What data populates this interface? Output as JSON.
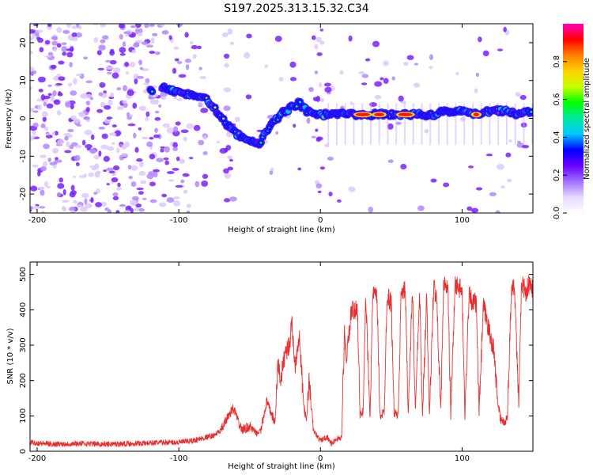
{
  "title": "S197.2025.313.15.32.C34",
  "chart_data": [
    {
      "type": "heatmap",
      "title": "S197.2025.313.15.32.C34",
      "xlabel": "Height of straight line (km)",
      "ylabel": "Frequency (Hz)",
      "xlim": [
        -205,
        150
      ],
      "ylim": [
        -25,
        25
      ],
      "x_ticks": [
        "-200",
        "-100",
        "0",
        "100"
      ],
      "x_tick_values": [
        -200,
        -100,
        0,
        100
      ],
      "y_ticks": [
        "20",
        "10",
        "0",
        "-10",
        "-20"
      ],
      "y_tick_values": [
        20,
        10,
        0,
        -10,
        -20
      ],
      "ridge_x": [
        -120,
        -110,
        -100,
        -90,
        -80,
        -75,
        -70,
        -65,
        -60,
        -55,
        -50,
        -45,
        -42,
        -40,
        -35,
        -30,
        -25,
        -20,
        -15,
        -10,
        -5,
        0,
        10,
        20,
        30,
        40,
        50,
        60,
        70,
        80,
        90,
        100,
        110,
        120,
        130,
        140,
        150
      ],
      "ridge_y": [
        7,
        8,
        7,
        6,
        5,
        3,
        0,
        -2,
        -4,
        -5,
        -6,
        -7,
        -6,
        -4,
        -2,
        0,
        2,
        3,
        4,
        2,
        1,
        1,
        1,
        1,
        1,
        1,
        1,
        1,
        1,
        1,
        2,
        2,
        1,
        2,
        2,
        1,
        2
      ],
      "peak_segments_x": [
        [
          25,
          35
        ],
        [
          38,
          45
        ],
        [
          55,
          65
        ],
        [
          108,
          112
        ]
      ],
      "colorbar": {
        "label": "Normalized spectral amplitude",
        "ticks": [
          "0.0",
          "0.2",
          "0.4",
          "0.6",
          "0.8"
        ],
        "tick_values": [
          0.0,
          0.2,
          0.4,
          0.6,
          0.8
        ],
        "range": [
          0.0,
          1.0
        ],
        "colors": [
          "#ffffff",
          "#e8d8ff",
          "#a070ff",
          "#6a00ff",
          "#0000ff",
          "#00c8ff",
          "#00e8a0",
          "#00ff00",
          "#c8ff00",
          "#ffd000",
          "#ff8000",
          "#ff0000",
          "#ff00c0"
        ]
      }
    },
    {
      "type": "line",
      "xlabel": "Height of straight line (km)",
      "ylabel": "SNR (10 * v/v)",
      "xlim": [
        -205,
        150
      ],
      "ylim": [
        0,
        535
      ],
      "x_ticks": [
        "-200",
        "-100",
        "0",
        "100"
      ],
      "x_tick_values": [
        -200,
        -100,
        0,
        100
      ],
      "y_ticks": [
        "0",
        "100",
        "200",
        "300",
        "400",
        "500"
      ],
      "y_tick_values": [
        0,
        100,
        200,
        300,
        400,
        500
      ],
      "series": [
        {
          "name": "SNR",
          "color": "#e83030",
          "x": [
            -205,
            -190,
            -170,
            -150,
            -130,
            -110,
            -100,
            -90,
            -80,
            -75,
            -70,
            -65,
            -62,
            -60,
            -58,
            -55,
            -50,
            -45,
            -42,
            -40,
            -38,
            -35,
            -32,
            -30,
            -28,
            -25,
            -22,
            -20,
            -18,
            -15,
            -12,
            -10,
            -8,
            -5,
            -2,
            0,
            2,
            5,
            8,
            10,
            12,
            15,
            16,
            17,
            18,
            20,
            22,
            24,
            26,
            28,
            30,
            32,
            35,
            37,
            40,
            42,
            45,
            47,
            50,
            52,
            55,
            57,
            60,
            62,
            65,
            67,
            70,
            72,
            75,
            77,
            80,
            82,
            85,
            87,
            90,
            92,
            95,
            97,
            100,
            102,
            105,
            107,
            110,
            112,
            115,
            117,
            120,
            122,
            125,
            127,
            130,
            132,
            135,
            137,
            140,
            142,
            145,
            147,
            150
          ],
          "y": [
            25,
            20,
            22,
            20,
            22,
            25,
            25,
            30,
            40,
            45,
            60,
            100,
            120,
            110,
            80,
            60,
            70,
            50,
            60,
            100,
            140,
            110,
            80,
            250,
            200,
            280,
            300,
            360,
            240,
            330,
            140,
            80,
            200,
            60,
            40,
            30,
            35,
            40,
            20,
            30,
            35,
            40,
            200,
            330,
            260,
            320,
            400,
            390,
            420,
            100,
            110,
            430,
            100,
            450,
            430,
            100,
            110,
            440,
            420,
            110,
            100,
            460,
            450,
            105,
            460,
            110,
            450,
            95,
            440,
            100,
            470,
            430,
            110,
            470,
            460,
            100,
            470,
            470,
            450,
            100,
            460,
            420,
            420,
            110,
            410,
            380,
            320,
            300,
            150,
            90,
            80,
            100,
            470,
            470,
            130,
            480,
            450,
            470,
            460
          ]
        }
      ]
    }
  ]
}
